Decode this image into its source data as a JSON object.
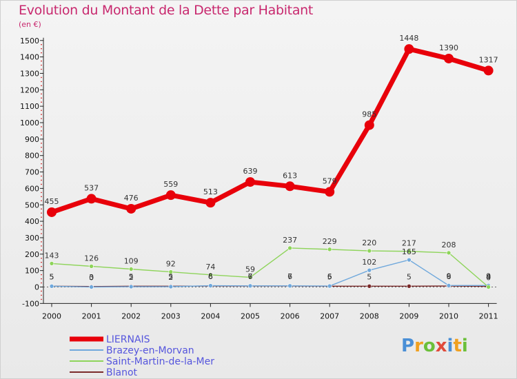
{
  "title": "Evolution du Montant de la Dette par Habitant",
  "subtitle": "(en €)",
  "logo": {
    "text": "Proxiti",
    "colors": [
      "#4a8fd6",
      "#f0a020",
      "#6bbf3a",
      "#e04a3a",
      "#4a8fd6",
      "#f0a020",
      "#6bbf3a"
    ]
  },
  "chart_data": {
    "type": "line",
    "title": "Evolution du Montant de la Dette par Habitant",
    "ylabel": "(en €)",
    "xlabel": "",
    "x": [
      "2000",
      "2001",
      "2002",
      "2003",
      "2004",
      "2005",
      "2006",
      "2007",
      "2008",
      "2009",
      "2010",
      "2011"
    ],
    "ylim": [
      -100,
      1500
    ],
    "yticks": [
      "-100",
      "0",
      "100",
      "200",
      "300",
      "400",
      "500",
      "600",
      "700",
      "800",
      "900",
      "1000",
      "1100",
      "1200",
      "1300",
      "1400",
      "1500"
    ],
    "grid": false,
    "legend": "bottom-left",
    "series": [
      {
        "name": "LIERNAIS",
        "color": "#e8000a",
        "values": [
          455,
          537,
          476,
          559,
          513,
          639,
          613,
          579,
          985,
          1448,
          1390,
          1317
        ],
        "labels": [
          "455",
          "537",
          "476",
          "559",
          "513",
          "639",
          "613",
          "579",
          "985",
          "1448",
          "1390",
          "1317"
        ]
      },
      {
        "name": "Brazey-en-Morvan",
        "color": "#6fa8dc",
        "values": [
          5,
          0,
          2,
          2,
          8,
          7,
          7,
          6,
          102,
          165,
          9,
          9
        ],
        "labels": [
          "5",
          "0",
          "2",
          "2",
          "8",
          "7",
          "7",
          "6",
          "102",
          "165",
          "9",
          "9"
        ]
      },
      {
        "name": "Saint-Martin-de-la-Mer",
        "color": "#8ed45a",
        "values": [
          143,
          126,
          109,
          92,
          74,
          59,
          237,
          229,
          220,
          217,
          208,
          0
        ],
        "labels": [
          "143",
          "126",
          "109",
          "92",
          "74",
          "59",
          "237",
          "229",
          "220",
          "217",
          "208",
          "0"
        ]
      },
      {
        "name": "Blanot",
        "color": "#7a2a2a",
        "values": [
          5,
          3,
          5,
          5,
          6,
          6,
          6,
          5,
          5,
          5,
          6,
          4
        ],
        "labels": [
          "5",
          "3",
          "5",
          "5",
          "6",
          "6",
          "6",
          "5",
          "5",
          "5",
          "6",
          "4"
        ]
      }
    ]
  }
}
